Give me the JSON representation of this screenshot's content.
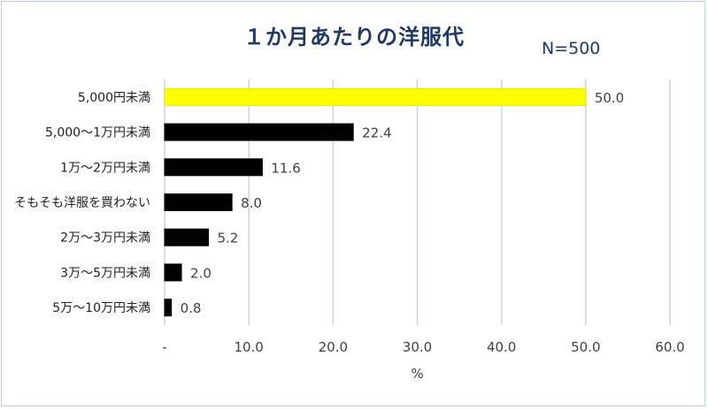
{
  "chart_data": {
    "type": "bar",
    "orientation": "horizontal",
    "title": "１か月あたりの洋服代",
    "subtitle": "N=500",
    "xlabel": "%",
    "ylabel": "",
    "categories": [
      "5,000円未満",
      "5,000～1万円未満",
      "1万～2万円未満",
      "そもそも洋服を買わない",
      "2万～3万円未満",
      "3万～5万円未満",
      "5万～10万円未満"
    ],
    "values": [
      50.0,
      22.4,
      11.6,
      8.0,
      5.2,
      2.0,
      0.8
    ],
    "value_labels": [
      "50.0",
      "22.4",
      "11.6",
      "8.0",
      "5.2",
      "2.0",
      "0.8"
    ],
    "bar_colors": [
      "#ffff00",
      "#000000",
      "#000000",
      "#000000",
      "#000000",
      "#000000",
      "#000000"
    ],
    "xlim": [
      0,
      60
    ],
    "ticks": [
      0,
      10,
      20,
      30,
      40,
      50,
      60
    ],
    "tick_labels": [
      "-",
      "10.0",
      "20.0",
      "30.0",
      "40.0",
      "50.0",
      "60.0"
    ],
    "grid": "vertical",
    "gridline_color": "#c8d4e0",
    "legend": "none"
  }
}
